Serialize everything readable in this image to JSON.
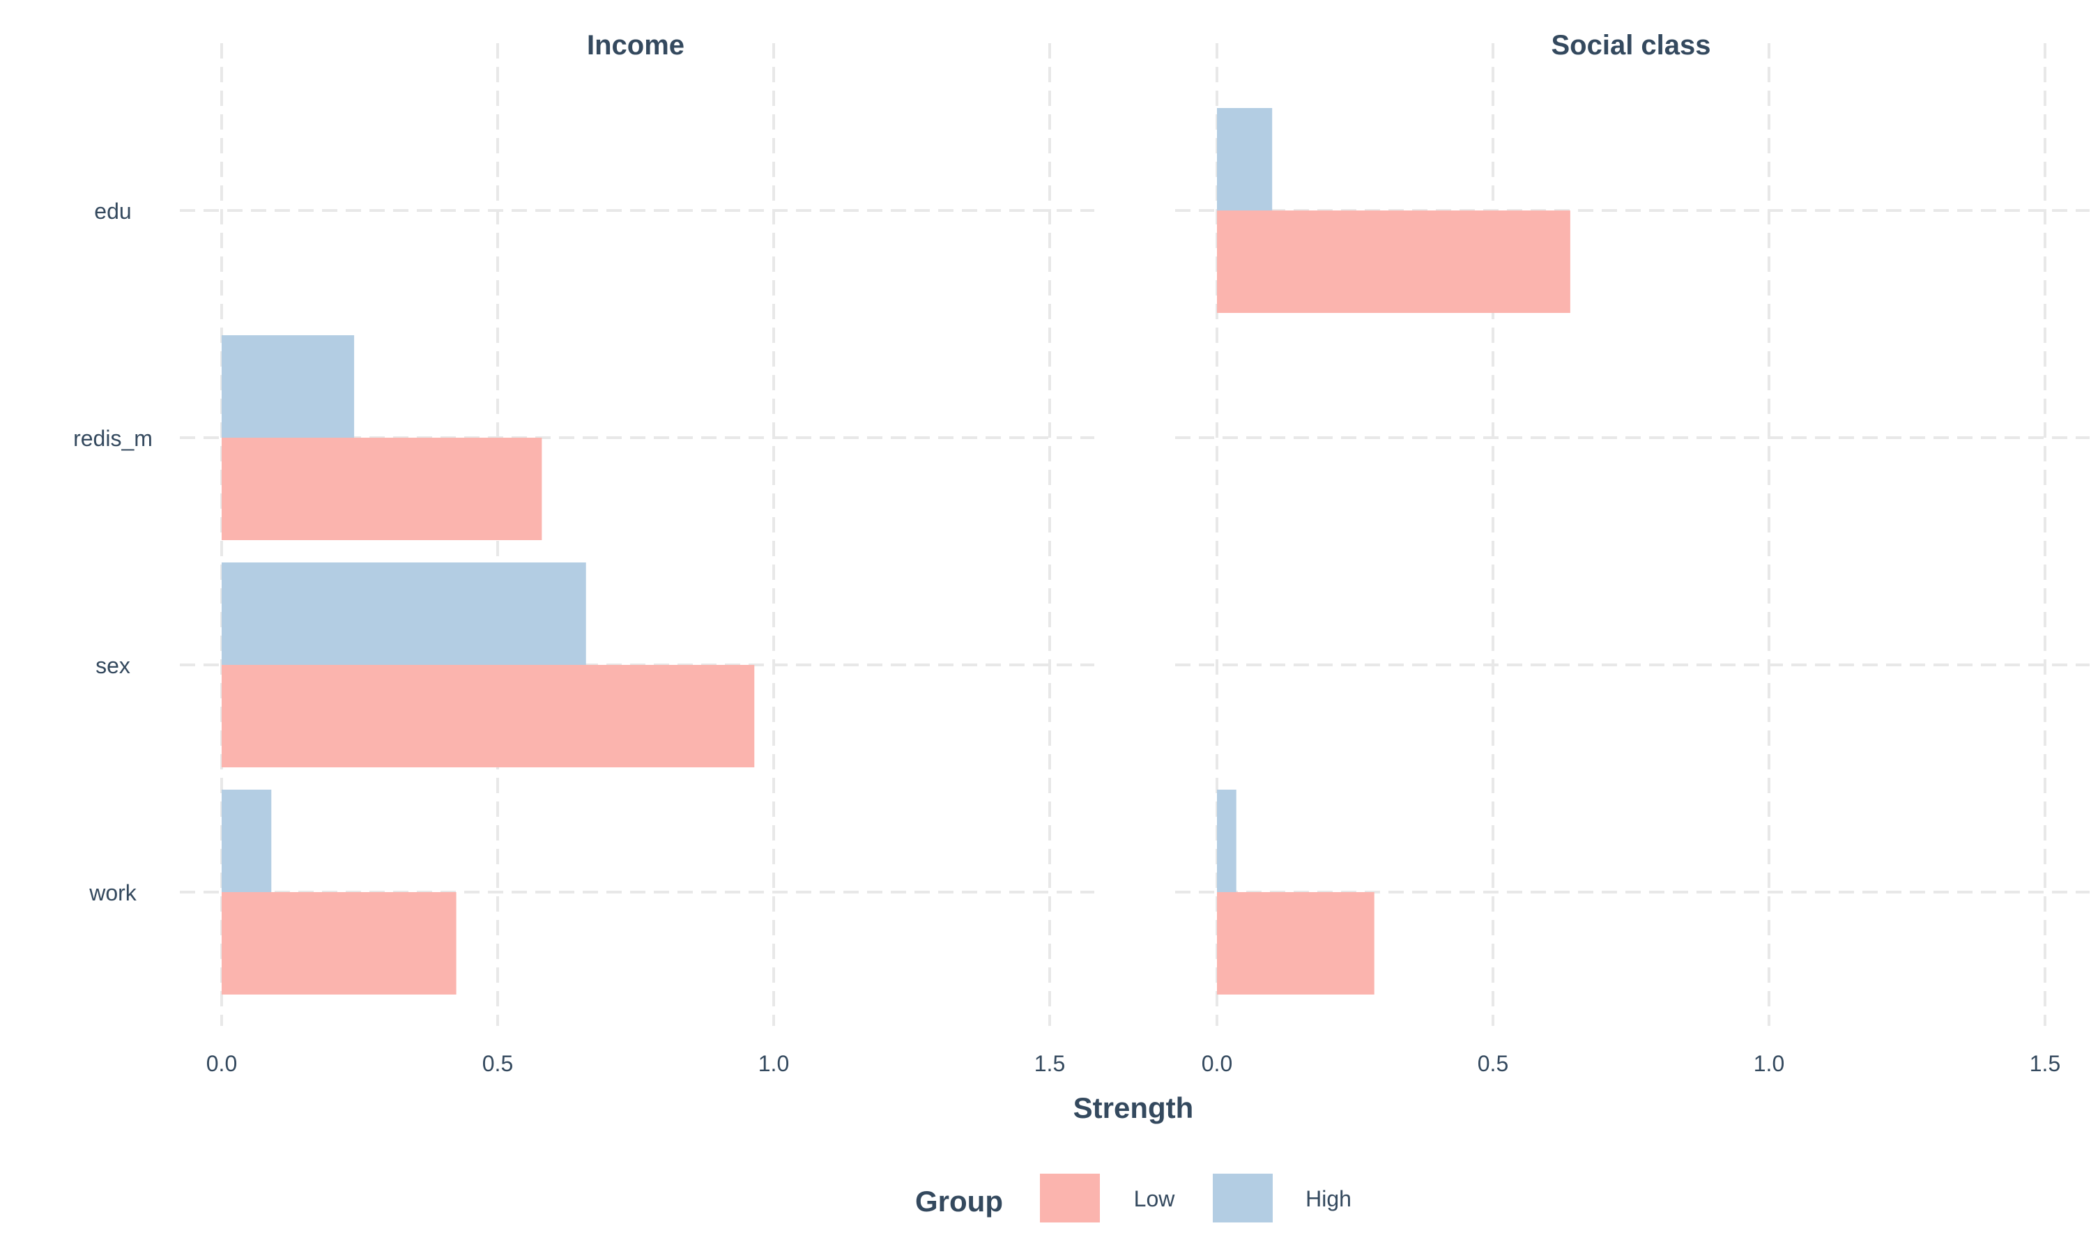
{
  "chart_data": {
    "type": "bar",
    "orientation": "horizontal",
    "categories": [
      "edu",
      "redis_m",
      "sex",
      "work"
    ],
    "xlabel": "Strength",
    "xlim": [
      0,
      1.5
    ],
    "xticks": [
      "0.0",
      "0.5",
      "1.0",
      "1.5"
    ],
    "grid": true,
    "legend": {
      "title": "Group",
      "placement": "bottom",
      "entries": [
        {
          "name": "Low",
          "color": "#FBB4AE"
        },
        {
          "name": "High",
          "color": "#B3CDE3"
        }
      ]
    },
    "panels": [
      {
        "title": "Income",
        "series": [
          {
            "name": "Low",
            "values": [
              null,
              0.58,
              0.965,
              0.425
            ]
          },
          {
            "name": "High",
            "values": [
              null,
              0.24,
              0.66,
              0.09
            ]
          }
        ]
      },
      {
        "title": "Social class",
        "series": [
          {
            "name": "Low",
            "values": [
              0.64,
              null,
              null,
              0.285
            ]
          },
          {
            "name": "High",
            "values": [
              0.1,
              null,
              null,
              0.035
            ]
          }
        ]
      }
    ]
  },
  "colors": {
    "low": "#FBB4AE",
    "high": "#B3CDE3",
    "text": "#34495E",
    "grid": "#E8E8E8"
  }
}
